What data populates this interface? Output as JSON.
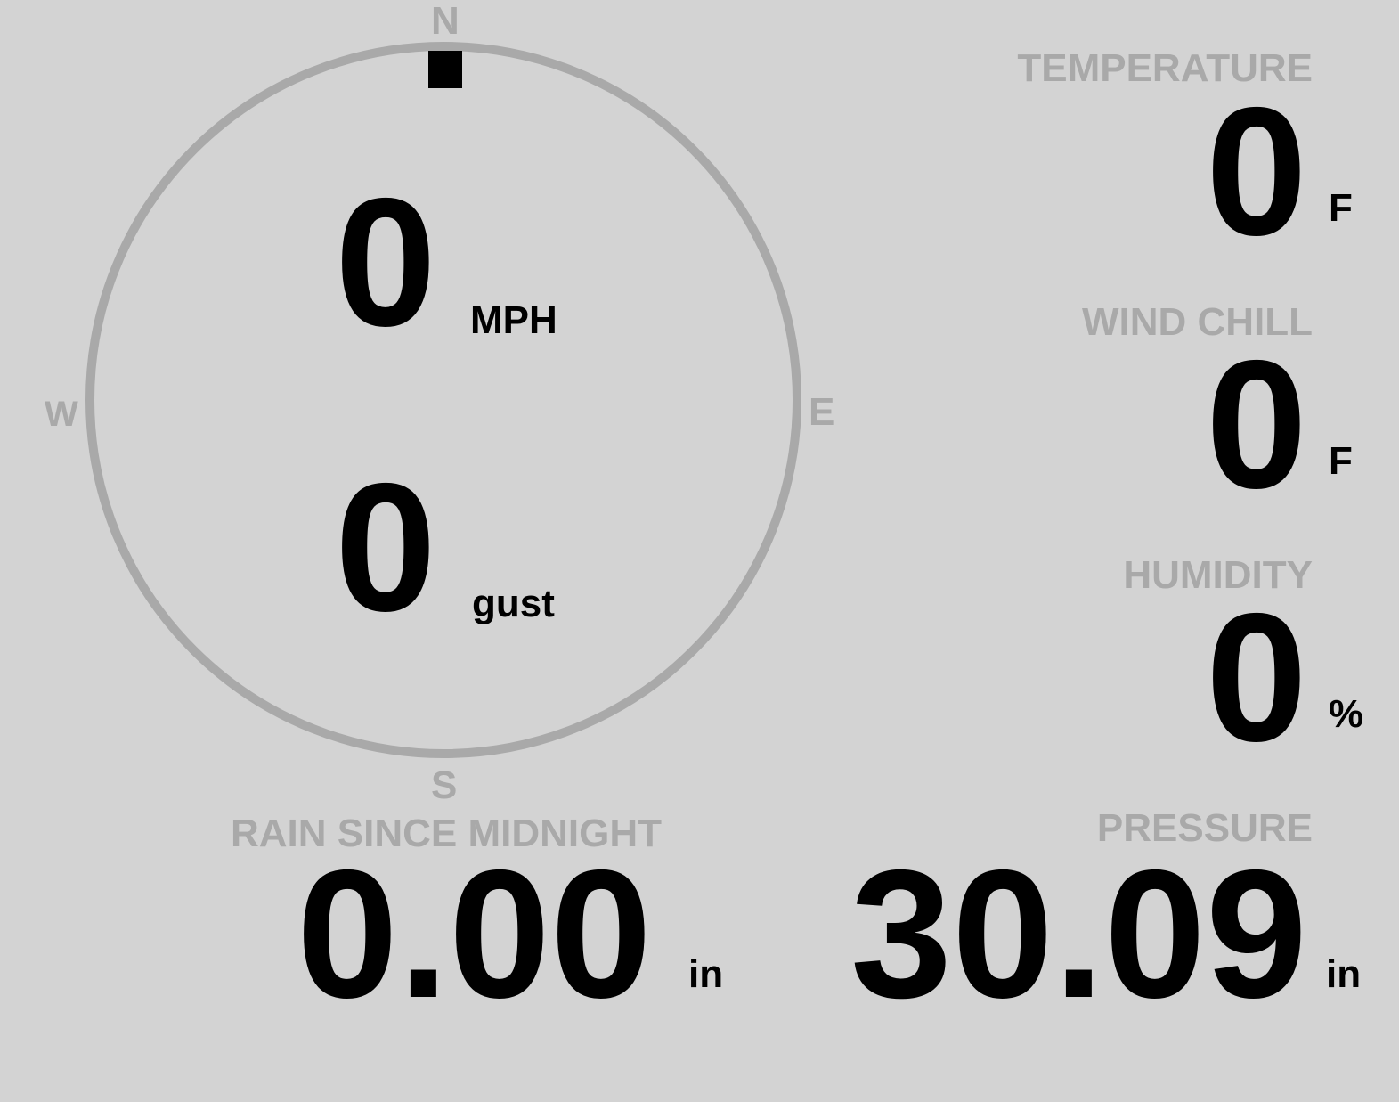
{
  "colors": {
    "background": "#d3d3d3",
    "label": "#a9a9a9",
    "value": "#000000"
  },
  "wind": {
    "direction_degrees": 0,
    "compass": {
      "n": "N",
      "e": "E",
      "s": "S",
      "w": "W"
    },
    "speed": "0",
    "speed_unit": "MPH",
    "gust": "0",
    "gust_unit": "gust"
  },
  "temperature": {
    "label": "TEMPERATURE",
    "value": "0",
    "unit": "F"
  },
  "wind_chill": {
    "label": "WIND CHILL",
    "value": "0",
    "unit": "F"
  },
  "humidity": {
    "label": "HUMIDITY",
    "value": "0",
    "unit": "%"
  },
  "rain": {
    "label": "RAIN SINCE MIDNIGHT",
    "value": "0.00",
    "unit": "in"
  },
  "pressure": {
    "label": "PRESSURE",
    "value": "30.09",
    "unit": "in"
  }
}
